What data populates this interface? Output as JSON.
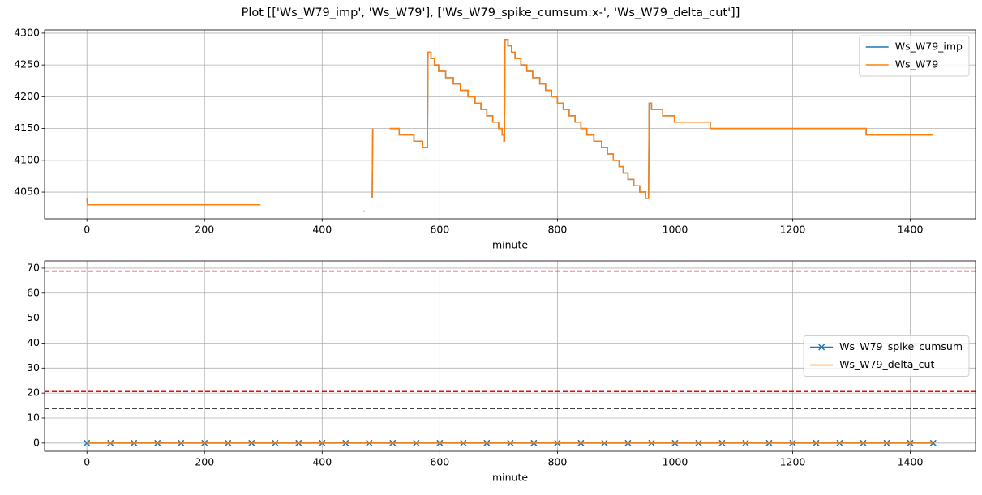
{
  "title": "Plot [['Ws_W79_imp', 'Ws_W79'], ['Ws_W79_spike_cumsum:x-', 'Ws_W79_delta_cut']]",
  "chart_data": [
    {
      "type": "line",
      "xlabel": "minute",
      "xlim": [
        -72,
        1511
      ],
      "ylim": [
        4008,
        4305
      ],
      "xticks": [
        0,
        200,
        400,
        600,
        800,
        1000,
        1200,
        1400
      ],
      "yticks": [
        4050,
        4100,
        4150,
        4200,
        4250,
        4300
      ],
      "grid": true,
      "legend": "upper right",
      "series": [
        {
          "name": "Ws_W79_imp",
          "color": "#1f77b4",
          "x": [
            0,
            1,
            295,
            null,
            470,
            472,
            null,
            485,
            486,
            null,
            515,
            531,
            531,
            556,
            556,
            571,
            571,
            579,
            580,
            585,
            585,
            591,
            591,
            598,
            598,
            610,
            610,
            623,
            623,
            635,
            635,
            648,
            648,
            660,
            660,
            670,
            670,
            680,
            680,
            690,
            690,
            700,
            700,
            706,
            706,
            709,
            709,
            710,
            711,
            716,
            716,
            722,
            722,
            728,
            728,
            738,
            738,
            748,
            748,
            758,
            758,
            770,
            770,
            780,
            780,
            790,
            790,
            800,
            800,
            810,
            810,
            820,
            820,
            830,
            830,
            840,
            840,
            850,
            850,
            862,
            862,
            875,
            875,
            885,
            885,
            895,
            895,
            905,
            905,
            912,
            912,
            920,
            920,
            930,
            930,
            940,
            940,
            950,
            950,
            955,
            956,
            960,
            960,
            979,
            979,
            999,
            999,
            1060,
            1060,
            1325,
            1325,
            1439
          ],
          "values": [
            4040,
            4030,
            4030,
            null,
            4020,
            4020,
            null,
            4040,
            4150,
            null,
            4150,
            4150,
            4140,
            4140,
            4130,
            4130,
            4120,
            4120,
            4270,
            4270,
            4260,
            4260,
            4250,
            4250,
            4240,
            4240,
            4230,
            4230,
            4220,
            4220,
            4210,
            4210,
            4200,
            4200,
            4190,
            4190,
            4180,
            4180,
            4170,
            4170,
            4160,
            4160,
            4150,
            4150,
            4140,
            4140,
            4130,
            4130,
            4290,
            4290,
            4280,
            4280,
            4270,
            4270,
            4260,
            4260,
            4250,
            4250,
            4240,
            4240,
            4230,
            4230,
            4220,
            4220,
            4210,
            4210,
            4200,
            4200,
            4190,
            4190,
            4180,
            4180,
            4170,
            4170,
            4160,
            4160,
            4150,
            4150,
            4140,
            4140,
            4130,
            4130,
            4120,
            4120,
            4110,
            4110,
            4100,
            4100,
            4090,
            4090,
            4080,
            4080,
            4070,
            4070,
            4060,
            4060,
            4050,
            4050,
            4040,
            4040,
            4190,
            4190,
            4180,
            4180,
            4170,
            4170,
            4160,
            4160,
            4150,
            4150,
            4140,
            4140
          ]
        },
        {
          "name": "Ws_W79",
          "color": "#ff7f0e",
          "x": [
            0,
            1,
            295,
            null,
            470,
            472,
            null,
            485,
            486,
            null,
            515,
            531,
            531,
            556,
            556,
            571,
            571,
            579,
            580,
            585,
            585,
            591,
            591,
            598,
            598,
            610,
            610,
            623,
            623,
            635,
            635,
            648,
            648,
            660,
            660,
            670,
            670,
            680,
            680,
            690,
            690,
            700,
            700,
            706,
            706,
            709,
            709,
            710,
            711,
            716,
            716,
            722,
            722,
            728,
            728,
            738,
            738,
            748,
            748,
            758,
            758,
            770,
            770,
            780,
            780,
            790,
            790,
            800,
            800,
            810,
            810,
            820,
            820,
            830,
            830,
            840,
            840,
            850,
            850,
            862,
            862,
            875,
            875,
            885,
            885,
            895,
            895,
            905,
            905,
            912,
            912,
            920,
            920,
            930,
            930,
            940,
            940,
            950,
            950,
            955,
            956,
            960,
            960,
            979,
            979,
            999,
            999,
            1060,
            1060,
            1325,
            1325,
            1439
          ],
          "values": [
            4040,
            4030,
            4030,
            null,
            4020,
            4020,
            null,
            4040,
            4150,
            null,
            4150,
            4150,
            4140,
            4140,
            4130,
            4130,
            4120,
            4120,
            4270,
            4270,
            4260,
            4260,
            4250,
            4250,
            4240,
            4240,
            4230,
            4230,
            4220,
            4220,
            4210,
            4210,
            4200,
            4200,
            4190,
            4190,
            4180,
            4180,
            4170,
            4170,
            4160,
            4160,
            4150,
            4150,
            4140,
            4140,
            4130,
            4130,
            4290,
            4290,
            4280,
            4280,
            4270,
            4270,
            4260,
            4260,
            4250,
            4250,
            4240,
            4240,
            4230,
            4230,
            4220,
            4220,
            4210,
            4210,
            4200,
            4200,
            4190,
            4190,
            4180,
            4180,
            4170,
            4170,
            4160,
            4160,
            4150,
            4150,
            4140,
            4140,
            4130,
            4130,
            4120,
            4120,
            4110,
            4110,
            4100,
            4100,
            4090,
            4090,
            4080,
            4080,
            4070,
            4070,
            4060,
            4060,
            4050,
            4050,
            4040,
            4040,
            4190,
            4190,
            4180,
            4180,
            4170,
            4170,
            4160,
            4160,
            4150,
            4150,
            4140,
            4140
          ]
        }
      ]
    },
    {
      "type": "line",
      "xlabel": "minute",
      "xlim": [
        -72,
        1511
      ],
      "ylim": [
        -3.3,
        72.9
      ],
      "xticks": [
        0,
        200,
        400,
        600,
        800,
        1000,
        1200,
        1400
      ],
      "yticks": [
        0,
        10,
        20,
        30,
        40,
        50,
        60,
        70
      ],
      "grid": true,
      "legend": "center right",
      "hlines": [
        {
          "y": 68.8,
          "color": "red",
          "linestyle": "--"
        },
        {
          "y": 20.6,
          "color": "red",
          "linestyle": "--"
        },
        {
          "y": 13.9,
          "color": "black",
          "linestyle": "--"
        }
      ],
      "series": [
        {
          "name": "Ws_W79_spike_cumsum",
          "color": "#1f77b4",
          "marker": "x",
          "x": [
            0,
            40,
            80,
            120,
            160,
            200,
            240,
            280,
            320,
            360,
            400,
            440,
            480,
            520,
            560,
            600,
            640,
            680,
            720,
            760,
            800,
            840,
            880,
            920,
            960,
            1000,
            1040,
            1080,
            1120,
            1160,
            1200,
            1240,
            1280,
            1320,
            1360,
            1400,
            1439
          ],
          "values": [
            0,
            0,
            0,
            0,
            0,
            0,
            0,
            0,
            0,
            0,
            0,
            0,
            0,
            0,
            0,
            0,
            0,
            0,
            0,
            0,
            0,
            0,
            0,
            0,
            0,
            0,
            0,
            0,
            0,
            0,
            0,
            0,
            0,
            0,
            0,
            0,
            0
          ]
        },
        {
          "name": "Ws_W79_delta_cut",
          "color": "#ff7f0e",
          "x": [
            0,
            1439
          ],
          "values": [
            0,
            0
          ]
        }
      ]
    }
  ]
}
